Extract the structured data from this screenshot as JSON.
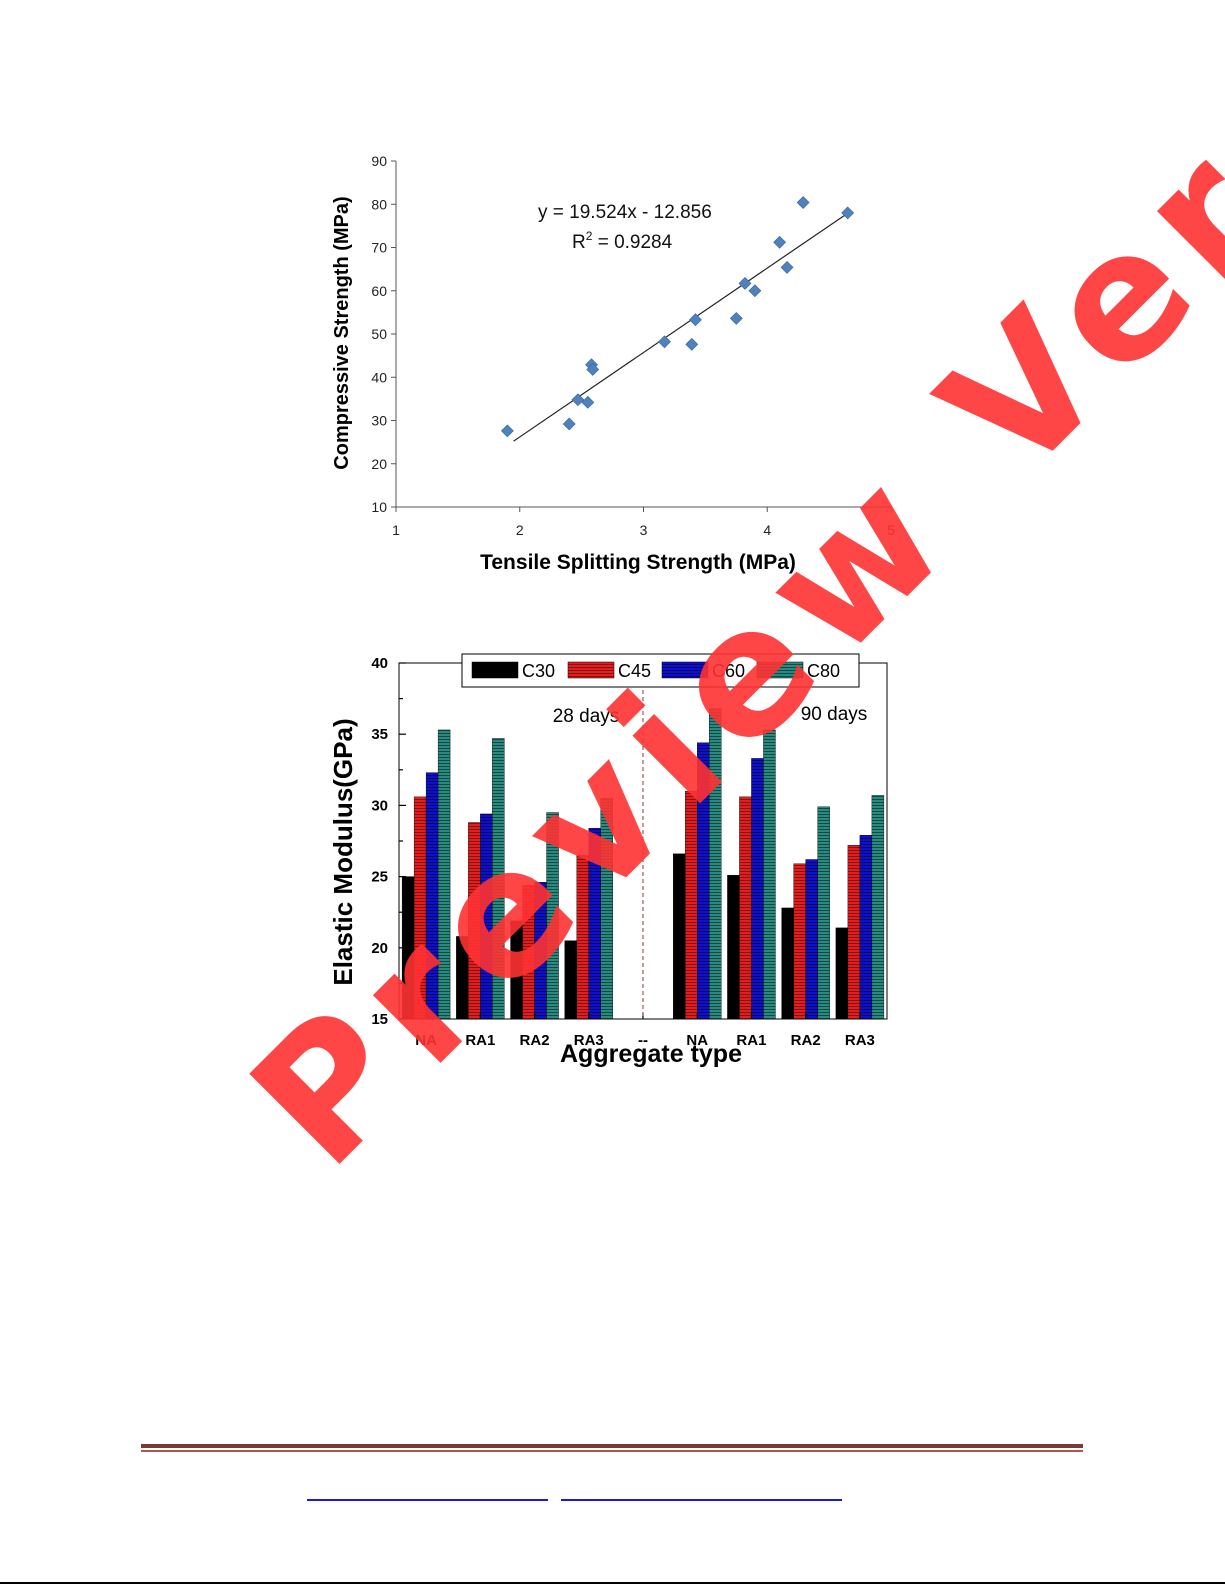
{
  "chart_data": [
    {
      "type": "scatter",
      "title": "",
      "xlabel": "Tensile Splitting Strength (MPa)",
      "ylabel": "Compressive Strength (MPa)",
      "xlim": [
        1,
        5
      ],
      "ylim": [
        10,
        90
      ],
      "xticks": [
        "1",
        "2",
        "3",
        "4",
        "5"
      ],
      "yticks": [
        "10",
        "20",
        "30",
        "40",
        "50",
        "60",
        "70",
        "80",
        "90"
      ],
      "marker_color": "#4f81bd",
      "points": [
        {
          "x": 1.9,
          "y": 27.6
        },
        {
          "x": 2.4,
          "y": 29.2
        },
        {
          "x": 2.47,
          "y": 34.8
        },
        {
          "x": 2.55,
          "y": 34.2
        },
        {
          "x": 2.58,
          "y": 42.9
        },
        {
          "x": 2.59,
          "y": 41.8
        },
        {
          "x": 3.17,
          "y": 48.2
        },
        {
          "x": 3.39,
          "y": 47.6
        },
        {
          "x": 3.42,
          "y": 53.3
        },
        {
          "x": 3.75,
          "y": 53.6
        },
        {
          "x": 3.82,
          "y": 61.7
        },
        {
          "x": 3.9,
          "y": 60.0
        },
        {
          "x": 4.1,
          "y": 71.2
        },
        {
          "x": 4.16,
          "y": 65.4
        },
        {
          "x": 4.29,
          "y": 80.4
        },
        {
          "x": 4.65,
          "y": 78.0
        }
      ],
      "trendline": {
        "slope": 19.524,
        "intercept": -12.856,
        "x_range": [
          1.95,
          4.65
        ]
      },
      "annotations": {
        "equation": "y = 19.524x - 12.856",
        "r2_prefix": "R",
        "r2_sup": "2",
        "r2_value": " = 0.9284"
      }
    },
    {
      "type": "bar",
      "title": "",
      "xlabel": "Aggregate type",
      "ylabel": "Elastic Modulus(GPa)",
      "ylim": [
        15,
        40
      ],
      "yticks": [
        "15",
        "20",
        "25",
        "30",
        "35",
        "40"
      ],
      "categories": [
        "NA",
        "RA1",
        "RA2",
        "RA3",
        "--",
        "NA",
        "RA1",
        "RA2",
        "RA3"
      ],
      "series": [
        {
          "name": "C30",
          "color": "#000000",
          "values": [
            25.0,
            20.8,
            21.9,
            20.5,
            null,
            26.6,
            25.1,
            22.8,
            21.4
          ]
        },
        {
          "name": "C45",
          "color": "#e02020",
          "values": [
            30.6,
            28.8,
            24.4,
            26.5,
            null,
            31.0,
            30.6,
            25.9,
            27.2
          ]
        },
        {
          "name": "C60",
          "color": "#1010c8",
          "values": [
            32.3,
            29.4,
            24.6,
            28.4,
            null,
            34.4,
            33.3,
            26.2,
            27.9
          ]
        },
        {
          "name": "C80",
          "color": "#2a8a80",
          "values": [
            35.3,
            34.7,
            29.5,
            30.5,
            null,
            36.8,
            35.3,
            29.9,
            30.7
          ]
        }
      ],
      "annotations": {
        "left_group": "28 days",
        "right_group": "90 days"
      },
      "legend_position": "top-center"
    }
  ],
  "watermark": {
    "text": "Preview Version",
    "color": "#ff3232"
  },
  "footer": {
    "rule_color": "#7a3b32",
    "link_color": "#1a1ad8"
  }
}
